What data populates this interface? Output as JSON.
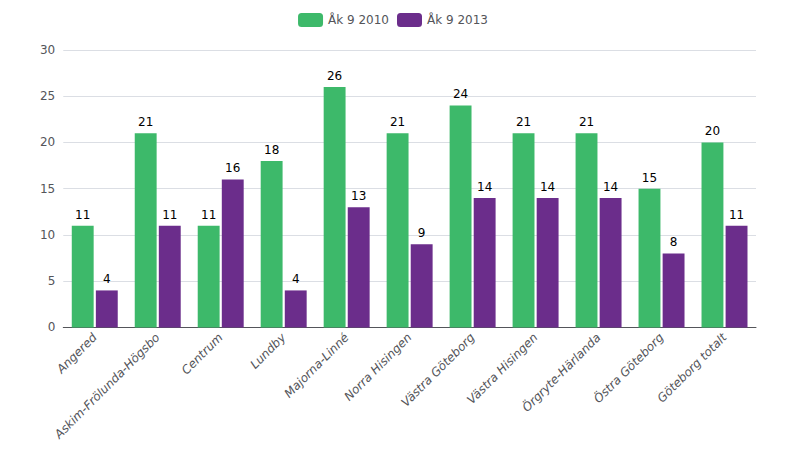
{
  "chart_data": {
    "type": "bar",
    "categories": [
      "Angered",
      "Askim-Frölunda-Högsbo",
      "Centrum",
      "Lundby",
      "Majorna-Linné",
      "Norra Hisingen",
      "Västra Göteborg",
      "Västra Hisingen",
      "Örgryte-Härlanda",
      "Östra Göteborg",
      "Göteborg totalt"
    ],
    "series": [
      {
        "name": "Åk 9 2010",
        "color": "#3DB96A",
        "values": [
          11,
          21,
          11,
          18,
          26,
          21,
          24,
          21,
          21,
          15,
          20
        ]
      },
      {
        "name": "Åk 9 2013",
        "color": "#6B2D8B",
        "values": [
          4,
          11,
          16,
          4,
          13,
          9,
          14,
          14,
          14,
          8,
          11
        ]
      }
    ],
    "ylim": [
      0,
      30
    ],
    "yticks": [
      0,
      5,
      10,
      15,
      20,
      25,
      30
    ],
    "grid": true,
    "legend": "top",
    "data_labels": true
  }
}
